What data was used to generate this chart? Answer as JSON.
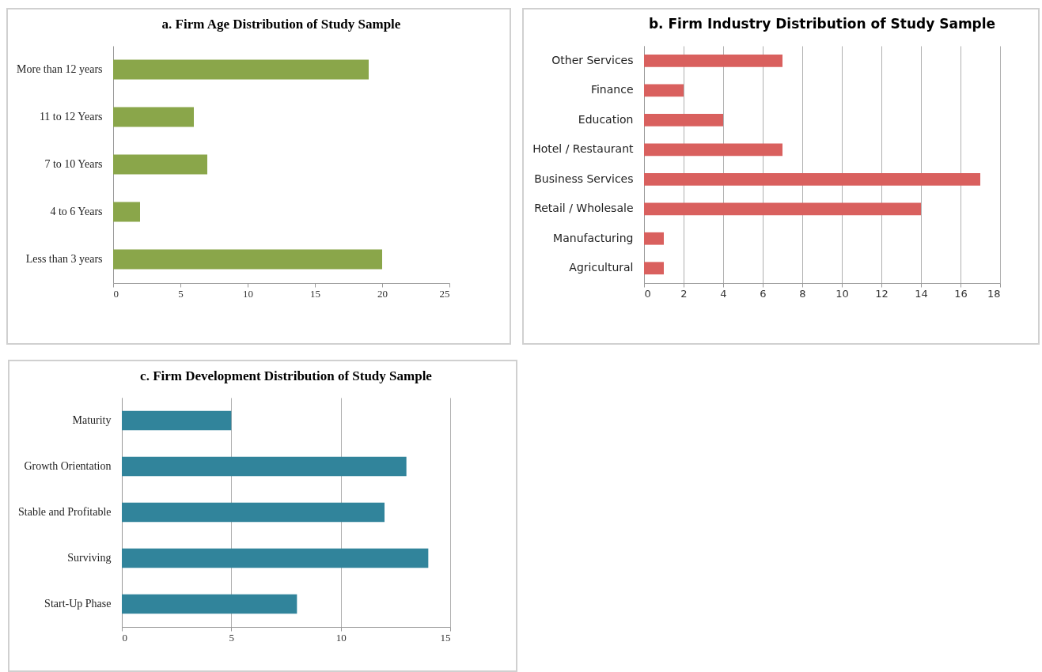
{
  "chart_data": [
    {
      "type": "bar",
      "orientation": "horizontal",
      "title": "a. Firm Age Distribution of Study Sample",
      "categories": [
        "More than 12 years",
        "11 to 12 Years",
        "7 to 10 Years",
        "4 to 6 Years",
        "Less than 3 years"
      ],
      "values": [
        19,
        6,
        7,
        2,
        20
      ],
      "color": "#8aa64a",
      "xlim": [
        0,
        25
      ],
      "xticks": [
        0,
        5,
        10,
        15,
        20,
        25
      ],
      "grid": false
    },
    {
      "type": "bar",
      "orientation": "horizontal",
      "title": "b. Firm Industry Distribution of Study Sample",
      "categories": [
        "Other Services",
        "Finance",
        "Education",
        "Hotel / Restaurant",
        "Business Services",
        "Retail / Wholesale",
        "Manufacturing",
        "Agricultural"
      ],
      "values": [
        7,
        2,
        4,
        7,
        17,
        14,
        1,
        1
      ],
      "color": "#d9605e",
      "xlim": [
        0,
        18
      ],
      "xticks": [
        0,
        2,
        4,
        6,
        8,
        10,
        12,
        14,
        16,
        18
      ],
      "grid": "x"
    },
    {
      "type": "bar",
      "orientation": "horizontal",
      "title": "c.  Firm Development Distribution of Study Sample",
      "categories": [
        "Maturity",
        "Growth Orientation",
        "Stable and Profitable",
        "Surviving",
        "Start-Up Phase"
      ],
      "values": [
        5,
        13,
        12,
        14,
        8
      ],
      "color": "#31849b",
      "xlim": [
        0,
        15
      ],
      "xticks": [
        0,
        5,
        10,
        15
      ],
      "grid": "x"
    }
  ]
}
